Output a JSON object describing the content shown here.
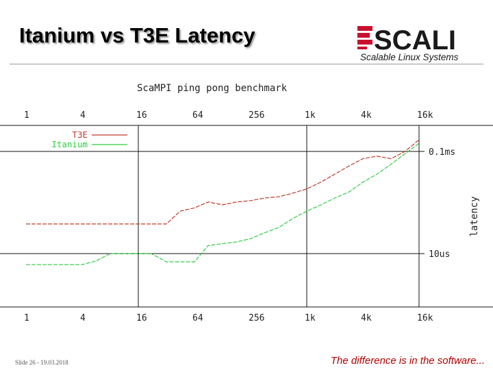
{
  "slide": {
    "title": "Itanium vs T3E Latency",
    "footer_left": "Slide 26 - 19.03.2018",
    "footer_right": "The difference is in the software..."
  },
  "logo": {
    "name": "SCALI",
    "tagline": "Scalable Linux Systems",
    "colors": {
      "bars": "#c8102e",
      "text": "#1a1a1a"
    }
  },
  "chart_data": {
    "type": "line",
    "title": "ScaMPI ping pong benchmark",
    "xscale": "log2",
    "xlim": [
      1,
      16384
    ],
    "x_tick_labels": [
      "1",
      "4",
      "16",
      "64",
      "256",
      "1k",
      "4k",
      "16k"
    ],
    "yscale": "log10",
    "ylim": [
      3,
      180
    ],
    "ylabel": "latency",
    "y_tick_labels": [
      "0.1ms",
      "10us"
    ],
    "y_tick_values": [
      100,
      10
    ],
    "grid": true,
    "legend": "top-left",
    "series": [
      {
        "name": "T3E",
        "color": "#c0392b",
        "x": [
          1,
          16,
          32,
          45,
          64,
          90,
          128,
          181,
          256,
          362,
          512,
          724,
          1024,
          1448,
          2048,
          2896,
          4096,
          5793,
          8192,
          11585,
          16384
        ],
        "y": [
          19.5,
          19.5,
          19.5,
          26,
          28,
          32,
          30,
          32,
          33,
          35,
          36,
          39,
          43,
          50,
          60,
          72,
          85,
          90,
          85,
          100,
          130
        ]
      },
      {
        "name": "Itanium",
        "color": "#2ecc40",
        "x": [
          1,
          4,
          5.7,
          8,
          16,
          22,
          32,
          45,
          64,
          90,
          128,
          181,
          256,
          362,
          512,
          724,
          1024,
          1448,
          2048,
          2896,
          4096,
          5793,
          8192,
          11585,
          16384
        ],
        "y": [
          7.8,
          7.8,
          8.5,
          10,
          10,
          10,
          8.3,
          8.3,
          8.3,
          12,
          12.5,
          13,
          14,
          16,
          18,
          22,
          26,
          30,
          35,
          40,
          50,
          60,
          75,
          95,
          120
        ]
      }
    ]
  }
}
